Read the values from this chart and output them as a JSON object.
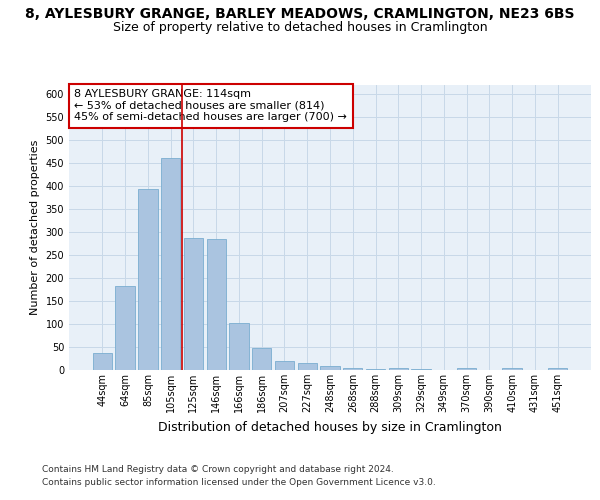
{
  "title_line1": "8, AYLESBURY GRANGE, BARLEY MEADOWS, CRAMLINGTON, NE23 6BS",
  "title_line2": "Size of property relative to detached houses in Cramlington",
  "xlabel": "Distribution of detached houses by size in Cramlington",
  "ylabel": "Number of detached properties",
  "categories": [
    "44sqm",
    "64sqm",
    "85sqm",
    "105sqm",
    "125sqm",
    "146sqm",
    "166sqm",
    "186sqm",
    "207sqm",
    "227sqm",
    "248sqm",
    "268sqm",
    "288sqm",
    "309sqm",
    "329sqm",
    "349sqm",
    "370sqm",
    "390sqm",
    "410sqm",
    "431sqm",
    "451sqm"
  ],
  "values": [
    36,
    182,
    393,
    461,
    287,
    285,
    102,
    47,
    20,
    15,
    8,
    4,
    2,
    5,
    2,
    1,
    5,
    1,
    4,
    1,
    5
  ],
  "bar_color": "#aac4e0",
  "bar_edge_color": "#7aadd0",
  "vline_x": 3.5,
  "vline_color": "#cc0000",
  "annotation_text": "8 AYLESBURY GRANGE: 114sqm\n← 53% of detached houses are smaller (814)\n45% of semi-detached houses are larger (700) →",
  "annotation_box_color": "#ffffff",
  "annotation_box_edge_color": "#cc0000",
  "ylim": [
    0,
    620
  ],
  "yticks": [
    0,
    50,
    100,
    150,
    200,
    250,
    300,
    350,
    400,
    450,
    500,
    550,
    600
  ],
  "grid_color": "#c8d8e8",
  "background_color": "#e8f0f8",
  "footer_line1": "Contains HM Land Registry data © Crown copyright and database right 2024.",
  "footer_line2": "Contains public sector information licensed under the Open Government Licence v3.0.",
  "title_fontsize": 10,
  "subtitle_fontsize": 9,
  "xlabel_fontsize": 9,
  "ylabel_fontsize": 8,
  "tick_fontsize": 7,
  "annotation_fontsize": 8,
  "footer_fontsize": 6.5
}
